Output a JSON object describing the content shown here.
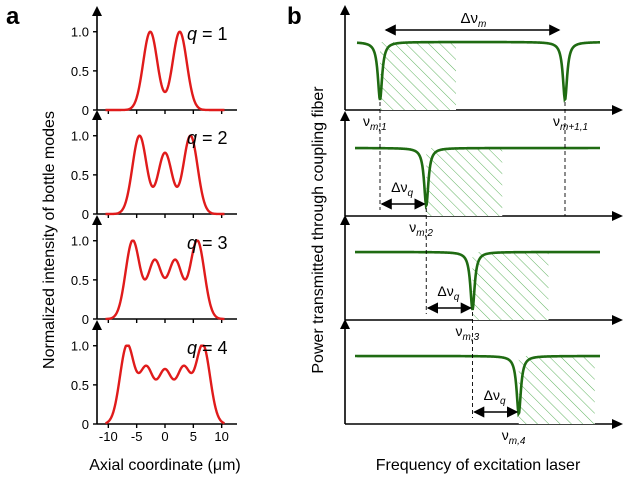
{
  "figure": {
    "panel_a_label": "a",
    "panel_b_label": "b"
  },
  "chart_data": [
    {
      "type": "line",
      "panel": "a",
      "title": "",
      "xlabel": "Axial coordinate (μm)",
      "ylabel": "Normalized intensity of bottle modes",
      "xlim": [
        -12,
        12
      ],
      "ylim": [
        0,
        1.15
      ],
      "xticks": [
        -10,
        -5,
        0,
        5,
        10
      ],
      "yticks": [
        "0",
        "0.5",
        "1.0"
      ],
      "line_color": "#e01b1b",
      "subplots": [
        {
          "q_prefix": "q",
          "q_value": "= 1",
          "q": 1,
          "peaks_x": [
            -2.6,
            2.6
          ],
          "peaks_y": [
            1.0,
            1.0
          ]
        },
        {
          "q_prefix": "q",
          "q_value": "= 2",
          "q": 2,
          "peaks_x": [
            -4.5,
            0,
            4.5
          ],
          "peaks_y": [
            1.0,
            0.78,
            1.0
          ]
        },
        {
          "q_prefix": "q",
          "q_value": "= 3",
          "q": 3,
          "peaks_x": [
            -5.7,
            -1.8,
            1.8,
            5.7
          ],
          "peaks_y": [
            1.0,
            0.74,
            0.74,
            1.0
          ]
        },
        {
          "q_prefix": "q",
          "q_value": "= 4",
          "q": 4,
          "peaks_x": [
            -6.7,
            -3.3,
            0,
            3.3,
            6.7
          ],
          "peaks_y": [
            1.0,
            0.7,
            0.66,
            0.7,
            1.0
          ]
        }
      ]
    },
    {
      "type": "line",
      "panel": "b",
      "title": "",
      "xlabel": "Frequency of excitation laser",
      "ylabel": "Power transmitted through coupling fiber",
      "line_color": "#1f6b12",
      "hatch_color": "#4caf50",
      "delta_nu_m": {
        "sym": "Δν",
        "sub": "m"
      },
      "delta_nu_q": {
        "sym": "Δν",
        "sub": "q"
      },
      "subplots": [
        {
          "dips": [
            {
              "pos": 0.0,
              "label_sym": "ν",
              "label_sub": "m,1"
            },
            {
              "pos": 1.0,
              "label_sym": "ν",
              "label_sub": "m+1,1"
            }
          ]
        },
        {
          "dips": [
            {
              "pos": 0.25,
              "label_sym": "ν",
              "label_sub": "m,2"
            }
          ]
        },
        {
          "dips": [
            {
              "pos": 0.5,
              "label_sym": "ν",
              "label_sub": "m,3"
            }
          ]
        },
        {
          "dips": [
            {
              "pos": 0.75,
              "label_sym": "ν",
              "label_sub": "m,4"
            }
          ]
        }
      ]
    }
  ]
}
